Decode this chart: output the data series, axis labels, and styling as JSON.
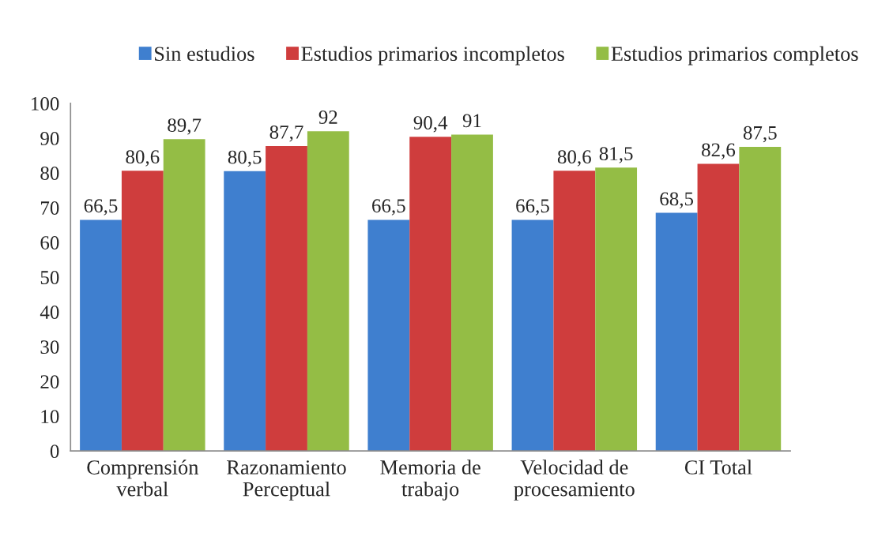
{
  "chart_data": {
    "type": "bar",
    "categories": [
      "Comprensión\nverbal",
      "Razonamiento\nPerceptual",
      "Memoria de\ntrabajo",
      "Velocidad de\nprocesamiento",
      "CI Total"
    ],
    "series": [
      {
        "name": "Sin estudios",
        "color": "#3f7fcf",
        "values": [
          66.5,
          80.5,
          66.5,
          66.5,
          68.5
        ],
        "value_labels": [
          "66,5",
          "80,5",
          "66,5",
          "66,5",
          "68,5"
        ]
      },
      {
        "name": "Estudios primarios incompletos",
        "color": "#cf3d3d",
        "values": [
          80.6,
          87.7,
          90.4,
          80.6,
          82.6
        ],
        "value_labels": [
          "80,6",
          "87,7",
          "90,4",
          "80,6",
          "82,6"
        ]
      },
      {
        "name": "Estudios primarios completos",
        "color": "#94bd45",
        "values": [
          89.7,
          92,
          91,
          81.5,
          87.5
        ],
        "value_labels": [
          "89,7",
          "92",
          "91",
          "81,5",
          "87,5"
        ]
      }
    ],
    "ylim": [
      0,
      100
    ],
    "yticks": [
      0,
      10,
      20,
      30,
      40,
      50,
      60,
      70,
      80,
      90,
      100
    ],
    "grid": false,
    "legend": "top"
  }
}
